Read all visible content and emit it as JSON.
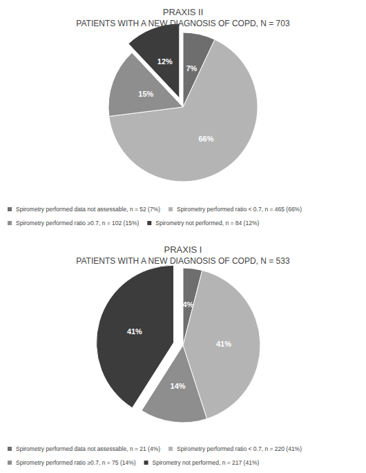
{
  "chart_data": [
    {
      "type": "pie",
      "title": "PRAXIS II",
      "subtitle": "PATIENTS WITH A NEW DIAGNOSIS OF COPD, N = 703",
      "categories": [
        "Spirometry performed data not assessable, n = 52 (7%)",
        "Spirometry performed ratio < 0.7, n = 465 (66%)",
        "Spirometry performed ratio ≥0.7, n = 102 (15%)",
        "Spirometry not performed, n = 84 (12%)"
      ],
      "values": [
        7,
        66,
        15,
        12
      ],
      "value_labels": [
        "7%",
        "66%",
        "15%",
        "12%"
      ],
      "colors": [
        "#6e6e6e",
        "#b4b4b4",
        "#8e8e8e",
        "#3c3c3c"
      ],
      "data_labels": true
    },
    {
      "type": "pie",
      "title": "PRAXIS I",
      "subtitle": "PATIENTS WITH A NEW DIAGNOSIS OF COPD, N = 533",
      "categories": [
        "Spirometry performed data not assessable, n = 21 (4%)",
        "Spirometry performed ratio < 0.7, n = 220 (41%)",
        "Spirometry performed ratio ≥0.7, n = 75 (14%)",
        "Spirometry not performed, n = 217 (41%)"
      ],
      "values": [
        4,
        41,
        14,
        41
      ],
      "value_labels": [
        "4%",
        "41%",
        "14%",
        "41%"
      ],
      "colors": [
        "#6e6e6e",
        "#b4b4b4",
        "#8e8e8e",
        "#3c3c3c"
      ],
      "data_labels": true
    }
  ]
}
